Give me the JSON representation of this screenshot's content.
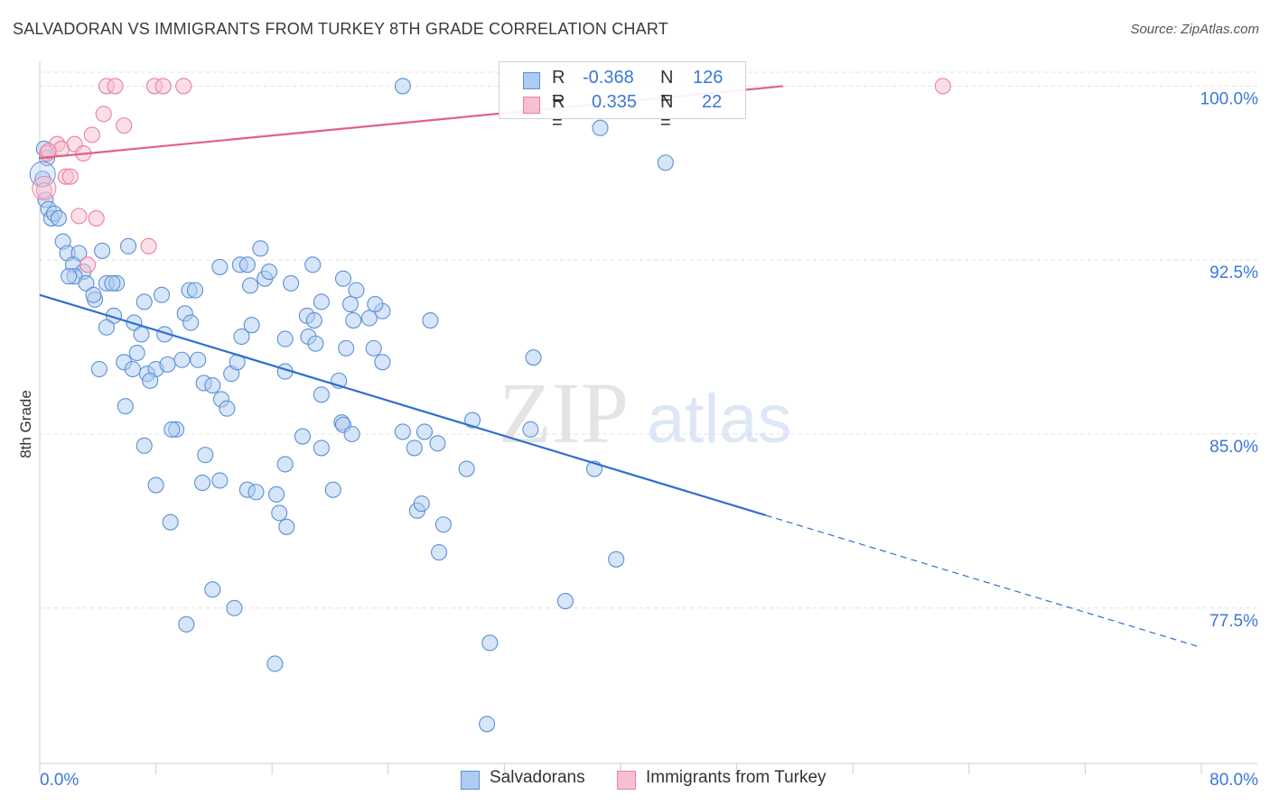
{
  "title": "SALVADORAN VS IMMIGRANTS FROM TURKEY 8TH GRADE CORRELATION CHART",
  "source": "Source: ZipAtlas.com",
  "watermark": {
    "zip": "ZIP",
    "atlas": "atlas"
  },
  "legend": {
    "series1": {
      "r_label": "R =",
      "r_value": "-0.368",
      "n_label": "N =",
      "n_value": "126"
    },
    "series2": {
      "r_label": "R =",
      "r_value": "0.335",
      "n_label": "N =",
      "n_value": "22"
    }
  },
  "bottom_legend": {
    "series1": "Salvadorans",
    "series2": "Immigrants from Turkey"
  },
  "colors": {
    "blue_fill": "#aecbf0",
    "blue_stroke": "#5b90d6",
    "blue_line": "#2f6fce",
    "pink_fill": "#f7bfd0",
    "pink_stroke": "#e8819f",
    "pink_line": "#e0608a",
    "tick_label": "#3b78d8",
    "grid": "#e0e0e0"
  },
  "chart_data": {
    "type": "scatter",
    "title": "SALVADORAN VS IMMIGRANTS FROM TURKEY 8TH GRADE CORRELATION CHART",
    "xlabel": "",
    "ylabel": "8th Grade",
    "xlim": [
      0,
      80
    ],
    "ylim": [
      70.8,
      100.6
    ],
    "x_tick_labels": [
      "0.0%",
      "80.0%"
    ],
    "y_ticks": [
      77.5,
      85.0,
      92.5,
      100.0
    ],
    "y_tick_labels": [
      "77.5%",
      "85.0%",
      "92.5%",
      "100.0%"
    ],
    "grid": true,
    "legend_position": "top-center",
    "series": [
      {
        "name": "Salvadorans",
        "r": -0.368,
        "n": 126,
        "trend": {
          "x0": 0,
          "y0": 91.0,
          "x1": 50,
          "y1": 81.5,
          "dashed_to_x": 80,
          "dashed_to_y": 75.8
        },
        "points": [
          [
            0.2,
            96.0
          ],
          [
            0.4,
            95.1
          ],
          [
            0.6,
            94.7
          ],
          [
            0.8,
            94.3
          ],
          [
            1.0,
            94.5
          ],
          [
            1.3,
            94.3
          ],
          [
            0.3,
            97.3
          ],
          [
            0.5,
            96.9
          ],
          [
            1.6,
            93.3
          ],
          [
            1.9,
            92.8
          ],
          [
            2.7,
            92.8
          ],
          [
            2.3,
            92.3
          ],
          [
            3.0,
            92.0
          ],
          [
            2.4,
            91.8
          ],
          [
            2.0,
            91.8
          ],
          [
            3.2,
            91.5
          ],
          [
            3.8,
            90.8
          ],
          [
            3.7,
            91.0
          ],
          [
            4.3,
            92.9
          ],
          [
            4.6,
            91.5
          ],
          [
            5.3,
            91.5
          ],
          [
            6.1,
            93.1
          ],
          [
            5.0,
            91.5
          ],
          [
            7.2,
            90.7
          ],
          [
            5.1,
            90.1
          ],
          [
            4.6,
            89.6
          ],
          [
            6.5,
            89.8
          ],
          [
            8.4,
            91.0
          ],
          [
            10.3,
            91.2
          ],
          [
            10.7,
            91.2
          ],
          [
            12.4,
            92.2
          ],
          [
            13.8,
            92.3
          ],
          [
            14.3,
            92.3
          ],
          [
            15.2,
            93.0
          ],
          [
            14.5,
            91.4
          ],
          [
            15.5,
            91.7
          ],
          [
            15.8,
            92.0
          ],
          [
            17.3,
            91.5
          ],
          [
            18.8,
            92.3
          ],
          [
            19.4,
            90.7
          ],
          [
            20.9,
            91.7
          ],
          [
            21.8,
            91.2
          ],
          [
            22.7,
            90.0
          ],
          [
            23.6,
            90.3
          ],
          [
            23.1,
            90.6
          ],
          [
            26.9,
            89.9
          ],
          [
            10.0,
            90.2
          ],
          [
            7.0,
            89.3
          ],
          [
            8.6,
            89.3
          ],
          [
            10.4,
            89.8
          ],
          [
            13.9,
            89.2
          ],
          [
            14.6,
            89.7
          ],
          [
            16.9,
            89.1
          ],
          [
            18.4,
            90.1
          ],
          [
            18.9,
            89.9
          ],
          [
            18.5,
            89.2
          ],
          [
            19.0,
            88.9
          ],
          [
            21.1,
            88.7
          ],
          [
            21.6,
            89.9
          ],
          [
            23.0,
            88.7
          ],
          [
            23.6,
            88.1
          ],
          [
            4.1,
            87.8
          ],
          [
            5.8,
            88.1
          ],
          [
            6.7,
            88.5
          ],
          [
            6.4,
            87.8
          ],
          [
            7.4,
            87.6
          ],
          [
            8.0,
            87.8
          ],
          [
            8.8,
            88.0
          ],
          [
            7.6,
            87.3
          ],
          [
            9.8,
            88.2
          ],
          [
            10.9,
            88.2
          ],
          [
            11.3,
            87.2
          ],
          [
            11.9,
            87.1
          ],
          [
            13.2,
            87.6
          ],
          [
            13.6,
            88.1
          ],
          [
            16.9,
            87.7
          ],
          [
            20.6,
            87.3
          ],
          [
            12.5,
            86.5
          ],
          [
            12.9,
            86.1
          ],
          [
            19.4,
            86.7
          ],
          [
            5.9,
            86.2
          ],
          [
            9.4,
            85.2
          ],
          [
            9.1,
            85.2
          ],
          [
            20.8,
            85.5
          ],
          [
            20.9,
            85.4
          ],
          [
            21.5,
            85.0
          ],
          [
            25.0,
            85.1
          ],
          [
            26.5,
            85.1
          ],
          [
            29.8,
            85.6
          ],
          [
            33.8,
            85.2
          ],
          [
            7.2,
            84.5
          ],
          [
            11.4,
            84.1
          ],
          [
            18.1,
            84.9
          ],
          [
            19.4,
            84.4
          ],
          [
            25.8,
            84.4
          ],
          [
            27.4,
            84.6
          ],
          [
            16.9,
            83.7
          ],
          [
            29.4,
            83.5
          ],
          [
            38.2,
            83.5
          ],
          [
            8.0,
            82.8
          ],
          [
            11.2,
            82.9
          ],
          [
            12.4,
            83.0
          ],
          [
            14.3,
            82.6
          ],
          [
            14.9,
            82.5
          ],
          [
            16.3,
            82.4
          ],
          [
            20.2,
            82.6
          ],
          [
            26.0,
            81.7
          ],
          [
            26.3,
            82.0
          ],
          [
            16.5,
            81.6
          ],
          [
            17.0,
            81.0
          ],
          [
            27.8,
            81.1
          ],
          [
            9.0,
            81.2
          ],
          [
            27.5,
            79.9
          ],
          [
            39.7,
            79.6
          ],
          [
            11.9,
            78.3
          ],
          [
            13.4,
            77.5
          ],
          [
            36.2,
            77.8
          ],
          [
            10.1,
            76.8
          ],
          [
            31.0,
            76.0
          ],
          [
            16.2,
            75.1
          ],
          [
            30.8,
            72.5
          ],
          [
            25.0,
            100.0
          ],
          [
            38.6,
            98.2
          ],
          [
            43.1,
            96.7
          ],
          [
            21.4,
            90.6
          ],
          [
            34.0,
            88.3
          ]
        ]
      },
      {
        "name": "Immigrants from Turkey",
        "r": 0.335,
        "n": 22,
        "trend": {
          "x0": 0,
          "y0": 96.9,
          "x1": 51.2,
          "y1": 100.0
        },
        "points": [
          [
            4.6,
            100.0
          ],
          [
            5.2,
            100.0
          ],
          [
            7.9,
            100.0
          ],
          [
            8.5,
            100.0
          ],
          [
            9.9,
            100.0
          ],
          [
            62.2,
            100.0
          ],
          [
            4.4,
            98.8
          ],
          [
            5.8,
            98.3
          ],
          [
            3.6,
            97.9
          ],
          [
            1.2,
            97.5
          ],
          [
            1.5,
            97.3
          ],
          [
            2.4,
            97.5
          ],
          [
            0.5,
            97.1
          ],
          [
            3.0,
            97.1
          ],
          [
            1.8,
            96.1
          ],
          [
            2.1,
            96.1
          ],
          [
            0.3,
            95.5
          ],
          [
            2.7,
            94.4
          ],
          [
            3.9,
            94.3
          ],
          [
            7.5,
            93.1
          ],
          [
            3.3,
            92.3
          ],
          [
            0.6,
            97.2
          ]
        ]
      }
    ]
  }
}
